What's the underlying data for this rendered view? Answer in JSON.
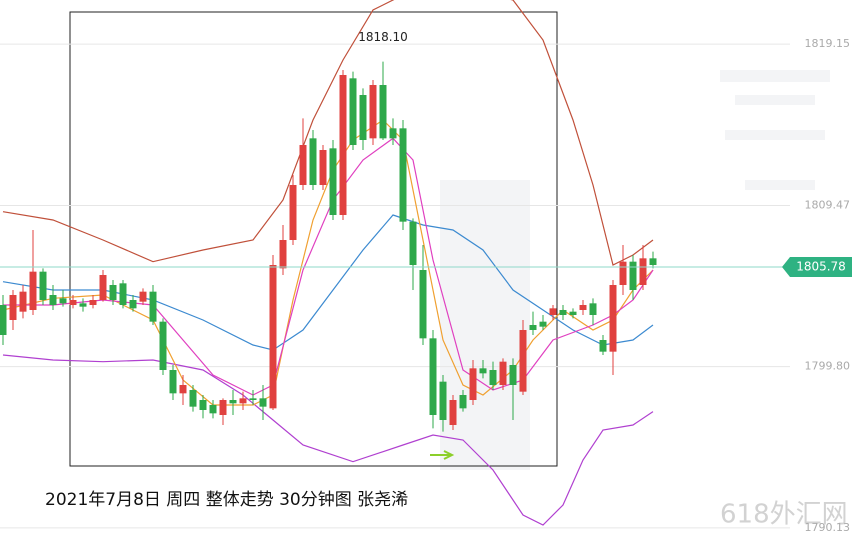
{
  "chart_data": {
    "type": "candlestick",
    "title": "2021年7月8日  周四 整体走势  30分钟图 张尧浠",
    "watermark": "618外汇网",
    "up_color": "#e0413f",
    "down_color": "#2ea84a",
    "ylim": [
      1789.58,
      1821.8
    ],
    "yticks": [
      1819.15,
      1809.47,
      {
        "value": 1799.8,
        "label": "1799.80"
      },
      1790.13
    ],
    "grid": true,
    "last_price": 1805.78,
    "max_label": {
      "value": 1818.1,
      "label": "1818.10",
      "index": 38
    },
    "ohlc": [
      [
        1803.5,
        1804.1,
        1801.1,
        1801.7
      ],
      [
        1802.6,
        1804.4,
        1802.0,
        1804.1
      ],
      [
        1803.1,
        1804.7,
        1802.7,
        1804.3
      ],
      [
        1803.2,
        1808.0,
        1802.9,
        1805.5
      ],
      [
        1805.5,
        1805.7,
        1803.5,
        1803.8
      ],
      [
        1804.1,
        1804.7,
        1803.2,
        1803.5
      ],
      [
        1803.9,
        1804.4,
        1803.4,
        1803.6
      ],
      [
        1803.5,
        1804.1,
        1803.3,
        1803.8
      ],
      [
        1803.6,
        1803.9,
        1803.1,
        1803.4
      ],
      [
        1803.5,
        1804.1,
        1803.3,
        1803.8
      ],
      [
        1803.8,
        1805.6,
        1803.7,
        1805.3
      ],
      [
        1804.7,
        1805.0,
        1803.5,
        1803.8
      ],
      [
        1804.8,
        1805.0,
        1803.3,
        1803.5
      ],
      [
        1803.8,
        1804.1,
        1803.1,
        1803.3
      ],
      [
        1803.7,
        1804.5,
        1803.5,
        1804.3
      ],
      [
        1804.3,
        1804.7,
        1802.3,
        1802.5
      ],
      [
        1802.5,
        1802.7,
        1799.3,
        1799.6
      ],
      [
        1799.6,
        1799.9,
        1797.8,
        1798.2
      ],
      [
        1798.2,
        1799.3,
        1797.5,
        1798.7
      ],
      [
        1798.4,
        1798.7,
        1797.1,
        1797.4
      ],
      [
        1797.8,
        1798.1,
        1796.7,
        1797.2
      ],
      [
        1797.5,
        1797.8,
        1796.7,
        1797.0
      ],
      [
        1796.9,
        1797.9,
        1796.3,
        1797.8
      ],
      [
        1797.8,
        1798.4,
        1796.9,
        1797.6
      ],
      [
        1797.6,
        1798.3,
        1797.2,
        1797.9
      ],
      [
        1797.9,
        1798.4,
        1797.5,
        1797.8
      ],
      [
        1797.9,
        1798.7,
        1796.6,
        1797.4
      ],
      [
        1797.3,
        1806.5,
        1797.2,
        1805.9
      ],
      [
        1805.7,
        1808.3,
        1805.3,
        1807.4
      ],
      [
        1807.4,
        1811.3,
        1807.1,
        1810.7
      ],
      [
        1810.7,
        1814.7,
        1810.4,
        1813.1
      ],
      [
        1813.5,
        1814.0,
        1810.4,
        1810.7
      ],
      [
        1810.7,
        1813.1,
        1810.4,
        1812.8
      ],
      [
        1812.9,
        1813.4,
        1808.6,
        1808.9
      ],
      [
        1808.9,
        1817.6,
        1808.6,
        1817.3
      ],
      [
        1817.1,
        1817.5,
        1812.8,
        1813.1
      ],
      [
        1816.1,
        1816.5,
        1812.8,
        1813.4
      ],
      [
        1813.5,
        1817.0,
        1813.1,
        1816.7
      ],
      [
        1816.7,
        1818.1,
        1813.4,
        1813.5
      ],
      [
        1814.1,
        1814.7,
        1813.1,
        1813.5
      ],
      [
        1814.1,
        1814.6,
        1808.0,
        1808.5
      ],
      [
        1808.5,
        1808.7,
        1804.4,
        1805.9
      ],
      [
        1805.6,
        1807.1,
        1801.1,
        1801.5
      ],
      [
        1801.5,
        1802.0,
        1796.1,
        1796.9
      ],
      [
        1798.9,
        1799.3,
        1795.9,
        1796.6
      ],
      [
        1796.3,
        1798.1,
        1796.0,
        1797.8
      ],
      [
        1798.1,
        1798.4,
        1797.1,
        1797.3
      ],
      [
        1797.8,
        1800.2,
        1797.5,
        1799.7
      ],
      [
        1799.7,
        1800.2,
        1799.1,
        1799.4
      ],
      [
        1799.6,
        1800.1,
        1798.4,
        1798.7
      ],
      [
        1798.7,
        1800.3,
        1798.4,
        1800.1
      ],
      [
        1799.9,
        1800.3,
        1796.6,
        1798.7
      ],
      [
        1798.3,
        1802.6,
        1798.1,
        1802.0
      ],
      [
        1802.3,
        1803.1,
        1801.7,
        1802.0
      ],
      [
        1802.5,
        1802.9,
        1802.0,
        1802.2
      ],
      [
        1802.9,
        1803.5,
        1802.6,
        1803.3
      ],
      [
        1803.2,
        1803.5,
        1802.6,
        1802.9
      ],
      [
        1803.1,
        1803.3,
        1802.7,
        1802.9
      ],
      [
        1803.2,
        1803.8,
        1802.9,
        1803.5
      ],
      [
        1803.6,
        1803.9,
        1802.3,
        1802.9
      ],
      [
        1801.4,
        1801.7,
        1800.5,
        1800.7
      ],
      [
        1800.7,
        1805.0,
        1799.3,
        1804.7
      ],
      [
        1804.7,
        1807.1,
        1804.1,
        1806.1
      ],
      [
        1806.1,
        1806.5,
        1803.8,
        1804.4
      ],
      [
        1804.7,
        1807.1,
        1804.4,
        1806.3
      ],
      [
        1806.3,
        1806.7,
        1805.7,
        1805.9
      ]
    ],
    "overlays": [
      {
        "color": "#c0503a",
        "x": [
          0,
          5,
          10,
          15,
          20,
          25,
          28,
          31,
          34,
          37,
          41,
          47,
          51,
          54,
          57,
          59,
          61,
          63,
          65
        ],
        "values": [
          1809.1,
          1808.6,
          1807.4,
          1806.1,
          1806.8,
          1807.4,
          1809.8,
          1814.6,
          1818.2,
          1821.2,
          1822.4,
          1822.4,
          1821.8,
          1819.4,
          1814.6,
          1810.7,
          1805.9,
          1806.5,
          1807.4
        ]
      },
      {
        "color": "#b040d0",
        "x": [
          0,
          5,
          10,
          15,
          20,
          24,
          27,
          30,
          35,
          40,
          43,
          46,
          49,
          52,
          54,
          56,
          58,
          60,
          63,
          65
        ],
        "values": [
          1800.5,
          1800.2,
          1800.1,
          1800.2,
          1799.6,
          1798.1,
          1796.6,
          1795.1,
          1794.1,
          1795.1,
          1795.7,
          1795.4,
          1793.6,
          1790.9,
          1790.3,
          1791.5,
          1794.2,
          1796.0,
          1796.3,
          1797.1
        ]
      },
      {
        "color": "#3c8ad0",
        "x": [
          0,
          5,
          10,
          15,
          20,
          25,
          27,
          30,
          33,
          36,
          39,
          42,
          45,
          48,
          51,
          54,
          57,
          60,
          63,
          65
        ],
        "values": [
          1804.9,
          1804.4,
          1804.4,
          1803.8,
          1802.6,
          1801.1,
          1800.8,
          1802.0,
          1804.4,
          1806.8,
          1808.9,
          1808.3,
          1808.0,
          1806.8,
          1804.4,
          1803.2,
          1802.0,
          1801.1,
          1801.4,
          1802.3
        ]
      },
      {
        "color": "#f0a030",
        "x": [
          0,
          5,
          10,
          15,
          18,
          21,
          25,
          27,
          29,
          31,
          33,
          35,
          38,
          40,
          42,
          44,
          46,
          48,
          51,
          53,
          56,
          59,
          61,
          63,
          65
        ],
        "values": [
          1803.2,
          1803.9,
          1804.1,
          1802.6,
          1799.0,
          1797.5,
          1797.5,
          1798.1,
          1803.8,
          1808.6,
          1811.6,
          1813.4,
          1814.6,
          1813.4,
          1807.4,
          1801.4,
          1798.7,
          1798.1,
          1799.6,
          1801.4,
          1803.2,
          1802.0,
          1802.6,
          1804.4,
          1805.6
        ]
      },
      {
        "color": "#e040c0",
        "x": [
          0,
          5,
          10,
          15,
          18,
          21,
          25,
          27,
          30,
          33,
          36,
          39,
          41,
          43,
          46,
          49,
          52,
          55,
          59,
          61,
          63,
          65
        ],
        "values": [
          1803.5,
          1803.5,
          1803.8,
          1803.5,
          1801.4,
          1799.3,
          1798.1,
          1798.7,
          1805.6,
          1809.8,
          1812.2,
          1813.5,
          1812.2,
          1806.2,
          1799.6,
          1798.4,
          1799.0,
          1801.4,
          1802.3,
          1802.9,
          1803.8,
          1805.6
        ]
      }
    ]
  }
}
